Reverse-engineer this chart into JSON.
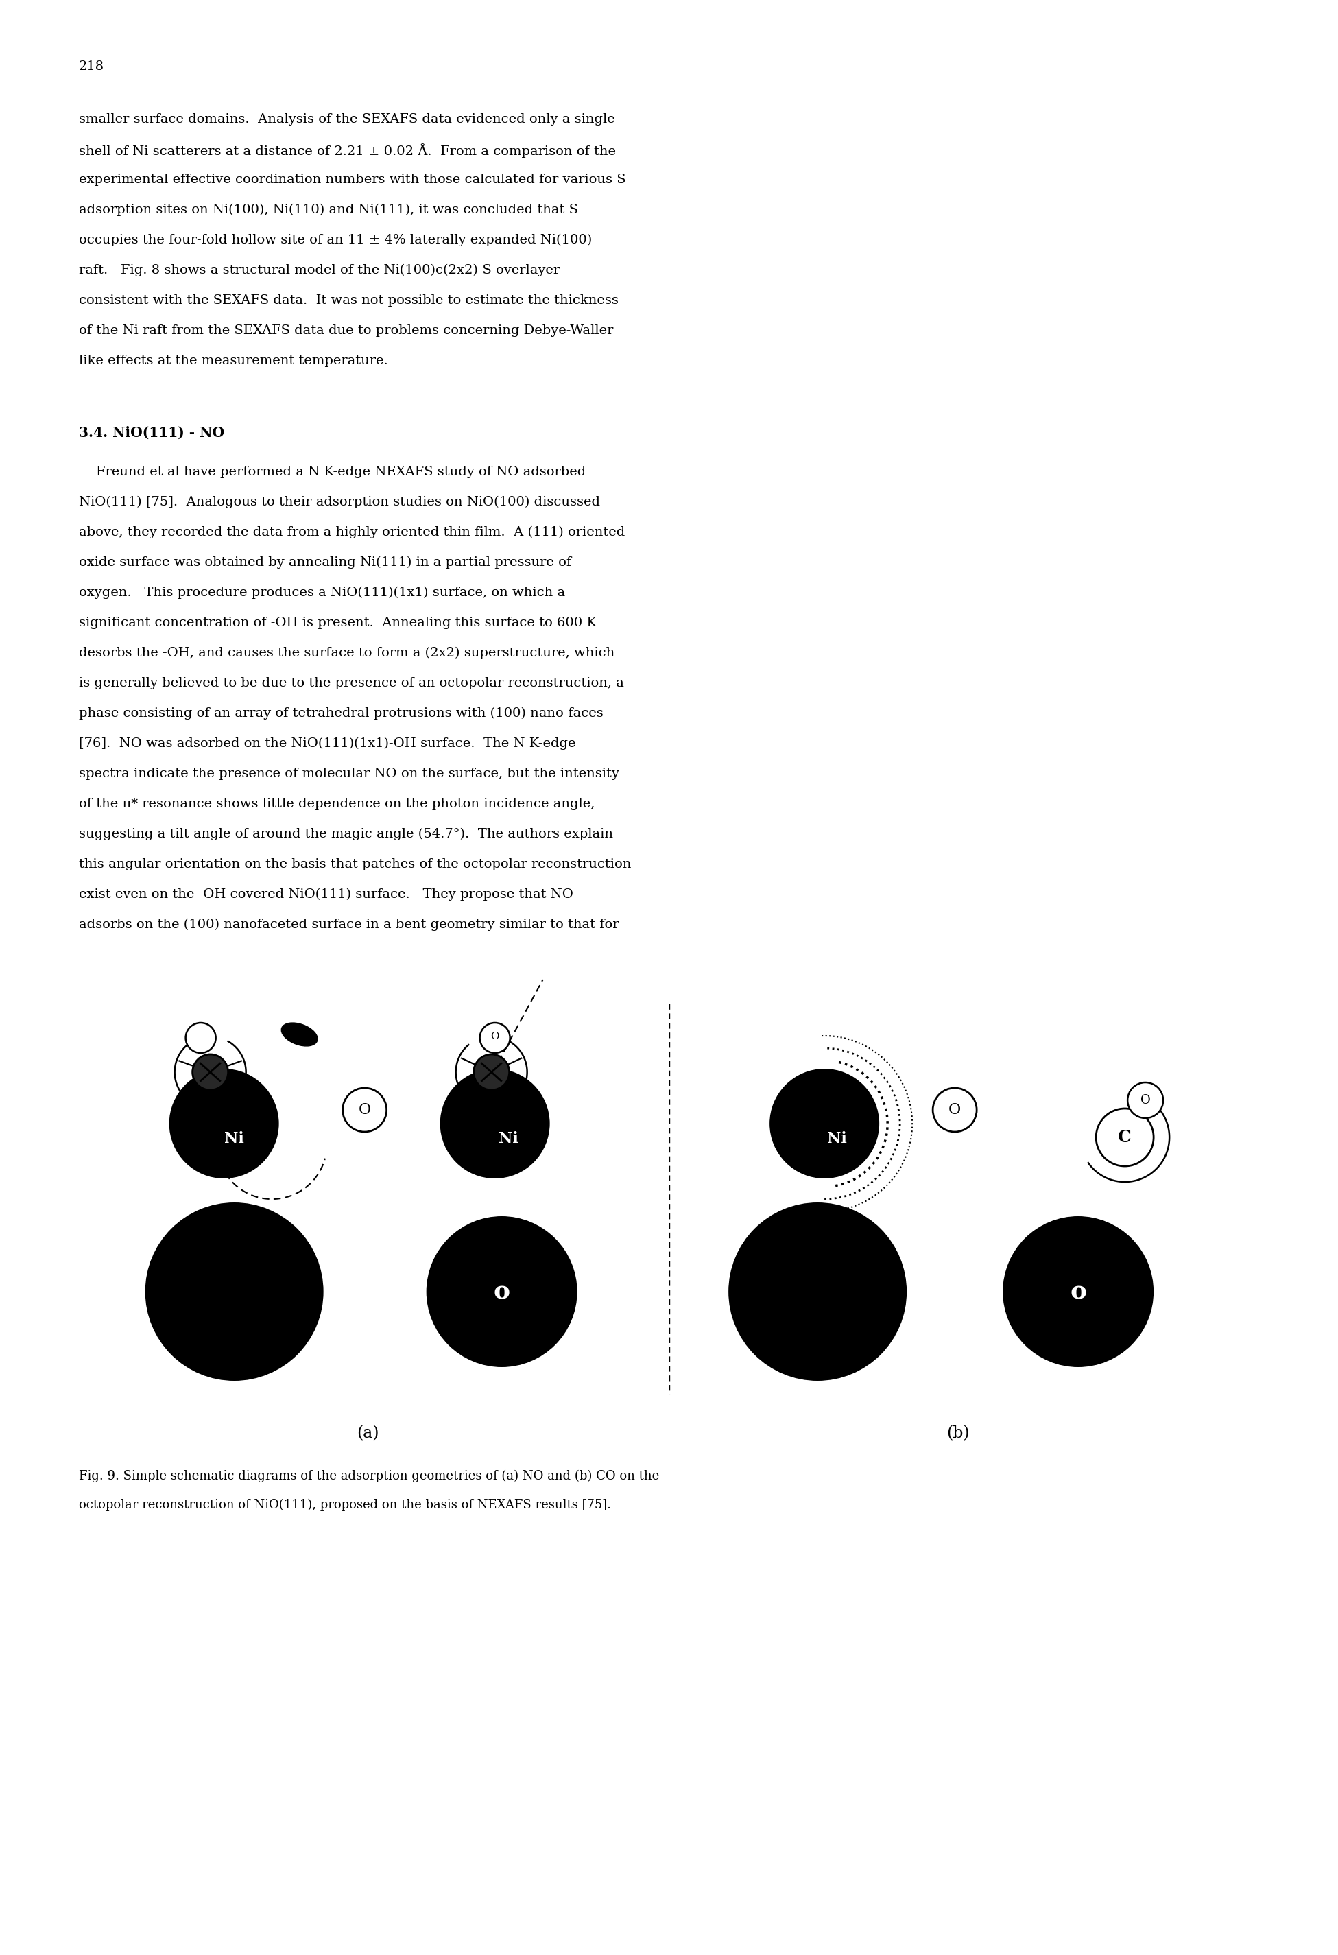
{
  "bg_color": "#ffffff",
  "text_color": "#000000",
  "page_number": "218",
  "paragraph1_lines": [
    "smaller surface domains.  Analysis of the SEXAFS data evidenced only a single",
    "shell of Ni scatterers at a distance of 2.21 ± 0.02 Å.  From a comparison of the",
    "experimental effective coordination numbers with those calculated for various S",
    "adsorption sites on Ni(100), Ni(110) and Ni(111), it was concluded that S",
    "occupies the four-fold hollow site of an 11 ± 4% laterally expanded Ni(100)",
    "raft.   Fig. 8 shows a structural model of the Ni(100)c(2x2)-S overlayer",
    "consistent with the SEXAFS data.  It was not possible to estimate the thickness",
    "of the Ni raft from the SEXAFS data due to problems concerning Debye-Waller",
    "like effects at the measurement temperature."
  ],
  "section_title": "3.4. NiO(111) - NO",
  "paragraph2_lines": [
    "    Freund et al have performed a N K-edge NEXAFS study of NO adsorbed",
    "NiO(111) [75].  Analogous to their adsorption studies on NiO(100) discussed",
    "above, they recorded the data from a highly oriented thin film.  A (111) oriented",
    "oxide surface was obtained by annealing Ni(111) in a partial pressure of",
    "oxygen.   This procedure produces a NiO(111)(1x1) surface, on which a",
    "significant concentration of -OH is present.  Annealing this surface to 600 K",
    "desorbs the -OH, and causes the surface to form a (2x2) superstructure, which",
    "is generally believed to be due to the presence of an octopolar reconstruction, a",
    "phase consisting of an array of tetrahedral protrusions with (100) nano-faces",
    "[76].  NO was adsorbed on the NiO(111)(1x1)-OH surface.  The N K-edge",
    "spectra indicate the presence of molecular NO on the surface, but the intensity",
    "of the π* resonance shows little dependence on the photon incidence angle,",
    "suggesting a tilt angle of around the magic angle (54.7°).  The authors explain",
    "this angular orientation on the basis that patches of the octopolar reconstruction",
    "exist even on the -OH covered NiO(111) surface.   They propose that NO",
    "adsorbs on the (100) nanofaceted surface in a bent geometry similar to that for"
  ],
  "caption_lines": [
    "Fig. 9. Simple schematic diagrams of the adsorption geometries of (a) NO and (b) CO on the",
    "octopolar reconstruction of NiO(111), proposed on the basis of NEXAFS results [75]."
  ],
  "label_a": "(a)",
  "label_b": "(b)"
}
